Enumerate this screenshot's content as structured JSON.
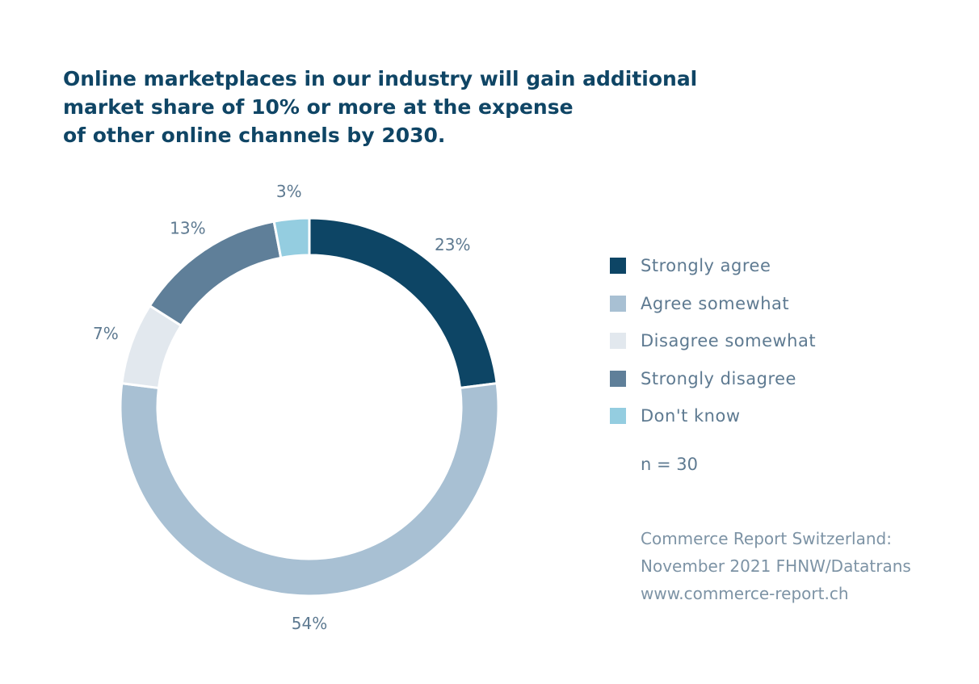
{
  "title_lines": [
    "Online marketplaces in our industry will gain additional",
    "market share of 10% or more at the expense",
    "of other online channels by 2030."
  ],
  "chart_data": {
    "type": "pie",
    "variant": "donut",
    "title": "Online marketplaces in our industry will gain additional market share of 10% or more at the expense of other online channels by 2030.",
    "categories": [
      "Strongly agree",
      "Agree somewhat",
      "Disagree somewhat",
      "Strongly disagree",
      "Don't know"
    ],
    "values": [
      23,
      54,
      7,
      13,
      3
    ],
    "value_labels": [
      "23%",
      "54%",
      "7%",
      "13%",
      "3%"
    ],
    "colors": [
      "#0d4565",
      "#a8c0d3",
      "#e2e8ee",
      "#5f7f99",
      "#94cde0"
    ],
    "legend_position": "right",
    "n_note": "n = 30"
  },
  "source_lines": [
    "Commerce Report Switzerland:",
    "November 2021 FHNW/Datatrans",
    "www.commerce-report.ch"
  ]
}
